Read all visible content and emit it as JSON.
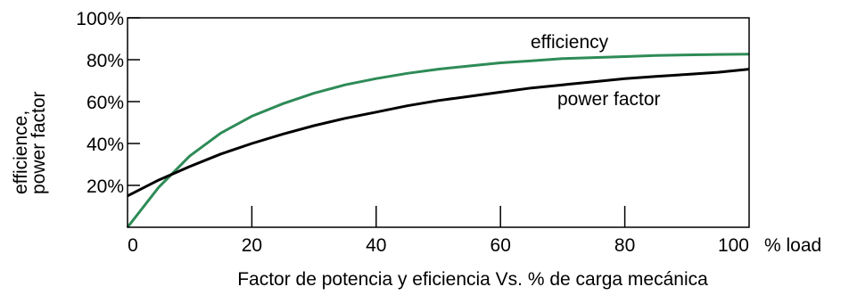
{
  "chart_data": {
    "type": "line",
    "title": "",
    "caption": "Factor de potencia y eficiencia Vs. % de carga mecánica",
    "xlabel": "% load",
    "ylabel_line1": "efficience,",
    "ylabel_line2": "power factor",
    "xlim": [
      0,
      100
    ],
    "ylim": [
      0,
      100
    ],
    "x_ticks": [
      "0",
      "20",
      "40",
      "60",
      "80",
      "100"
    ],
    "y_ticks": [
      "20%",
      "40%",
      "60%",
      "80%",
      "100%"
    ],
    "grid": false,
    "series": [
      {
        "name": "efficiency",
        "color": "#2e8b57",
        "x": [
          0,
          5,
          10,
          15,
          20,
          25,
          30,
          35,
          40,
          45,
          50,
          55,
          60,
          65,
          70,
          75,
          80,
          85,
          90,
          95,
          100
        ],
        "y": [
          0,
          19,
          34,
          45,
          53,
          59,
          64,
          68,
          71,
          73.5,
          75.5,
          77,
          78.5,
          79.5,
          80.5,
          81,
          81.5,
          82,
          82.3,
          82.5,
          82.7
        ]
      },
      {
        "name": "power factor",
        "color": "#000000",
        "x": [
          0,
          5,
          10,
          15,
          20,
          25,
          30,
          35,
          40,
          45,
          50,
          55,
          60,
          65,
          70,
          75,
          80,
          85,
          90,
          95,
          100
        ],
        "y": [
          15,
          22.5,
          29,
          35,
          40,
          44.5,
          48.5,
          52,
          55,
          58,
          60.5,
          62.5,
          64.5,
          66.5,
          68,
          69.5,
          71,
          72,
          73,
          74,
          75.5
        ]
      }
    ]
  }
}
